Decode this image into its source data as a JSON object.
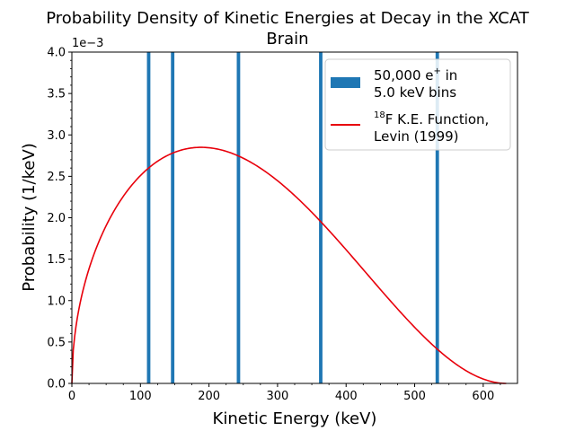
{
  "chart_data": {
    "type": "bar+line",
    "title_line1": "Probability Density of Kinetic Energies at Decay in the XCAT",
    "title_line2": "Brain",
    "xlabel": "Kinetic Energy (keV)",
    "ylabel": "Probability (1/keV)",
    "y_offset_text": "1e−3",
    "xlim": [
      0,
      650
    ],
    "ylim": [
      0,
      0.004
    ],
    "x_ticks": [
      0,
      100,
      200,
      300,
      400,
      500,
      600
    ],
    "x_tick_labels": [
      "0",
      "100",
      "200",
      "300",
      "400",
      "500",
      "600"
    ],
    "y_ticks": [
      0,
      0.0005,
      0.001,
      0.0015,
      0.002,
      0.0025,
      0.003,
      0.0035,
      0.004
    ],
    "y_tick_labels": [
      "0.0",
      "0.5",
      "1.0",
      "1.5",
      "2.0",
      "2.5",
      "3.0",
      "3.5",
      "4.0"
    ],
    "bar_series": {
      "name_line1_pre": "50,000 e",
      "name_line1_sup": "+",
      "name_line1_post": " in",
      "name_line2": "5.0 keV bins",
      "color": "#1f77b4",
      "bin_width": 5.0,
      "bins_shown": [
        112,
        147,
        243,
        363,
        533
      ],
      "value": 0.004
    },
    "line_series": {
      "name_line1_sup": "18",
      "name_line1_post": "F K.E. Function,",
      "name_line2": "Levin (1999)",
      "color": "#e8000b",
      "shape": "K.E. density, 0 at 0 and at 633.5 keV, peak ~0.00285 at ~260 keV",
      "endpoint_kev": 633.5,
      "peak_value": 0.00285
    },
    "legend_placement": "top-right"
  }
}
